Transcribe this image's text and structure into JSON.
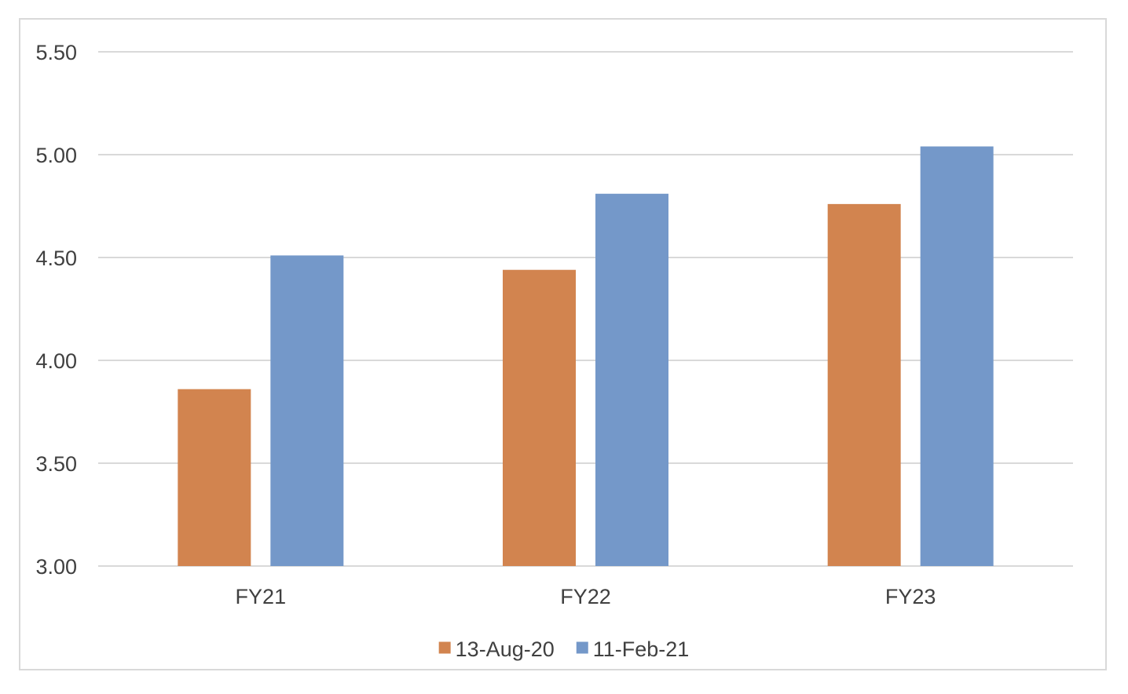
{
  "chart_data": {
    "type": "bar",
    "categories": [
      "FY21",
      "FY22",
      "FY23"
    ],
    "series": [
      {
        "name": "13-Aug-20",
        "color": "#d2844f",
        "values": [
          3.86,
          4.44,
          4.76
        ]
      },
      {
        "name": "11-Feb-21",
        "color": "#7498c9",
        "values": [
          4.51,
          4.81,
          5.04
        ]
      }
    ],
    "ylim": [
      3.0,
      5.5
    ],
    "yticks": [
      "3.00",
      "3.50",
      "4.00",
      "4.50",
      "5.00",
      "5.50"
    ],
    "grid": true,
    "legend_position": "bottom",
    "title": "",
    "xlabel": "",
    "ylabel": ""
  }
}
